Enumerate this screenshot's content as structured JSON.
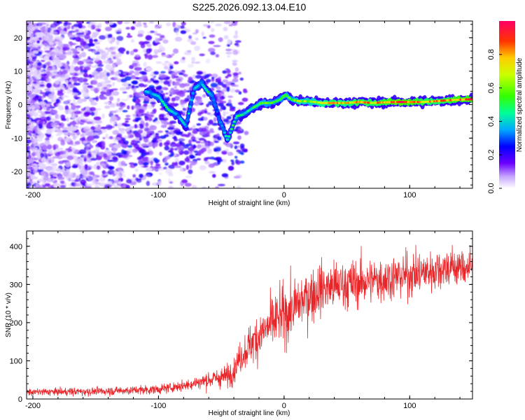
{
  "chart_data": [
    {
      "type": "heatmap",
      "title": "S225.2026.092.13.04.E10",
      "xlabel": "Height of straight line (km)",
      "ylabel": "Frequency (Hz)",
      "xlim": [
        -205,
        150
      ],
      "ylim": [
        -25,
        25
      ],
      "xticks": [
        {
          "v": -200,
          "label": "-200"
        },
        {
          "v": -100,
          "label": "-100"
        },
        {
          "v": 0,
          "label": "0"
        },
        {
          "v": 100,
          "label": "100"
        }
      ],
      "yticks": [
        {
          "v": -20,
          "label": "-20"
        },
        {
          "v": -10,
          "label": "-10"
        },
        {
          "v": 0,
          "label": "0"
        },
        {
          "v": 10,
          "label": "10"
        },
        {
          "v": 20,
          "label": "20"
        }
      ],
      "colorbar": {
        "label": "Normalized spectral amplitude",
        "range": [
          0,
          1
        ],
        "ticks": [
          {
            "v": 0.0,
            "label": "0.0"
          },
          {
            "v": 0.2,
            "label": "0.2"
          },
          {
            "v": 0.4,
            "label": "0.4"
          },
          {
            "v": 0.6,
            "label": "0.6"
          },
          {
            "v": 0.8,
            "label": "0.8"
          }
        ]
      },
      "ridge_track": [
        [
          -110,
          4,
          0.35
        ],
        [
          -100,
          2.5,
          0.45
        ],
        [
          -92,
          -1.5,
          0.5
        ],
        [
          -85,
          -3,
          0.35
        ],
        [
          -78,
          -6.5,
          0.4
        ],
        [
          -72,
          4.5,
          0.35
        ],
        [
          -66,
          6.5,
          0.4
        ],
        [
          -61,
          4,
          0.5
        ],
        [
          -57,
          2.5,
          0.35
        ],
        [
          -52,
          -4,
          0.3
        ],
        [
          -45,
          -10.5,
          0.45
        ],
        [
          -38,
          -3.5,
          0.5
        ],
        [
          -33,
          -3,
          0.45
        ],
        [
          -25,
          -1,
          0.5
        ],
        [
          -18,
          0.5,
          0.6
        ],
        [
          -10,
          0.5,
          0.55
        ],
        [
          -3,
          1.5,
          0.55
        ],
        [
          1,
          3,
          0.6
        ],
        [
          6,
          1.5,
          0.55
        ],
        [
          12,
          1,
          0.7
        ],
        [
          20,
          1,
          0.65
        ],
        [
          30,
          0.5,
          0.75
        ],
        [
          40,
          0.5,
          0.8
        ],
        [
          50,
          0.5,
          0.75
        ],
        [
          60,
          0.8,
          0.85
        ],
        [
          70,
          0.5,
          0.8
        ],
        [
          80,
          0.7,
          0.85
        ],
        [
          90,
          0.8,
          0.95
        ],
        [
          100,
          0.8,
          0.9
        ],
        [
          110,
          0.8,
          0.85
        ],
        [
          120,
          1,
          0.8
        ],
        [
          130,
          1.3,
          0.85
        ],
        [
          140,
          1.5,
          0.9
        ],
        [
          148,
          1.6,
          0.9
        ]
      ]
    },
    {
      "type": "line",
      "xlabel": "Height of straight line (km)",
      "ylabel": "SNR (10 * v/v)",
      "xlim": [
        -205,
        150
      ],
      "ylim": [
        0,
        440
      ],
      "color": "#e8262a",
      "xticks": [
        {
          "v": -200,
          "label": "-200"
        },
        {
          "v": -100,
          "label": "-100"
        },
        {
          "v": 0,
          "label": "0"
        },
        {
          "v": 100,
          "label": "100"
        }
      ],
      "yticks": [
        {
          "v": 0,
          "label": "0"
        },
        {
          "v": 100,
          "label": "100"
        },
        {
          "v": 200,
          "label": "200"
        },
        {
          "v": 300,
          "label": "300"
        },
        {
          "v": 400,
          "label": "400"
        }
      ],
      "trend": [
        [
          -205,
          18
        ],
        [
          -150,
          20
        ],
        [
          -100,
          25
        ],
        [
          -80,
          35
        ],
        [
          -60,
          50
        ],
        [
          -45,
          60
        ],
        [
          -40,
          75
        ],
        [
          -35,
          110
        ],
        [
          -25,
          150
        ],
        [
          -15,
          180
        ],
        [
          -5,
          210
        ],
        [
          5,
          230
        ],
        [
          15,
          260
        ],
        [
          30,
          290
        ],
        [
          50,
          300
        ],
        [
          70,
          310
        ],
        [
          90,
          320
        ],
        [
          110,
          330
        ],
        [
          130,
          345
        ],
        [
          150,
          345
        ]
      ],
      "noise": [
        [
          -205,
          7
        ],
        [
          -80,
          10
        ],
        [
          -40,
          25
        ],
        [
          -20,
          50
        ],
        [
          0,
          60
        ],
        [
          50,
          50
        ],
        [
          150,
          40
        ]
      ],
      "samples": 1700
    }
  ]
}
